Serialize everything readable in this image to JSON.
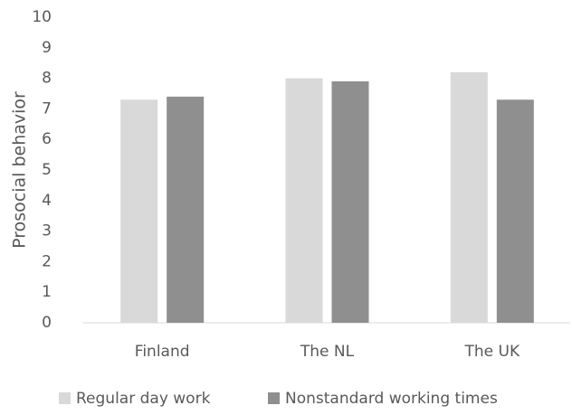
{
  "chart_data": {
    "type": "bar",
    "y_label": "Prosocial behavior",
    "categories": [
      "Finland",
      "The NL",
      "The UK"
    ],
    "series": [
      {
        "name": "Regular day work",
        "color": "#d9d9d9",
        "values": [
          7.3,
          8.0,
          8.2
        ]
      },
      {
        "name": "Nonstandard working times",
        "color": "#8f8f8f",
        "values": [
          7.4,
          7.9,
          7.3
        ]
      }
    ],
    "ylim": [
      0,
      10
    ],
    "yticks": [
      0,
      1,
      2,
      3,
      4,
      5,
      6,
      7,
      8,
      9,
      10
    ],
    "grid": false,
    "legend": "bottom"
  }
}
